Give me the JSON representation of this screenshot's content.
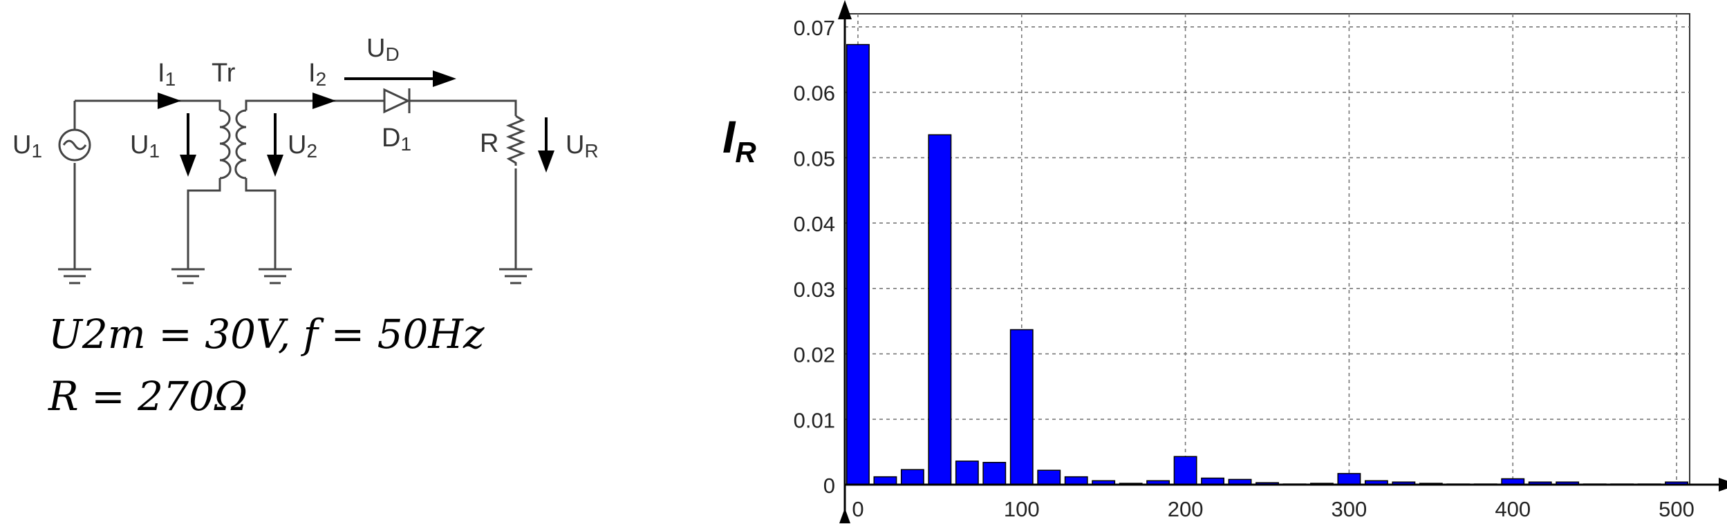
{
  "circuit": {
    "labels": {
      "source": "U1",
      "primary_current": "I1",
      "transformer": "Tr",
      "secondary_current": "I2",
      "diode_voltage": "UD",
      "primary_voltage": "U1",
      "secondary_voltage": "U2",
      "diode": "D1",
      "resistor": "R",
      "resistor_voltage": "UR"
    },
    "icons": [
      "ac-source-icon",
      "transformer-icon",
      "diode-icon",
      "resistor-icon",
      "ground-icon",
      "arrow-icon"
    ]
  },
  "equations": {
    "line1": "U2m = 30V, f = 50Hz",
    "line2": "R = 270Ω"
  },
  "chart_data": {
    "type": "bar",
    "ylabel": "IR",
    "xlabel": "",
    "title": "",
    "x": [
      0,
      16.67,
      33.33,
      50,
      66.67,
      83.33,
      100,
      116.67,
      133.33,
      150,
      166.67,
      183.33,
      200,
      216.67,
      233.33,
      250,
      266.67,
      283.33,
      300,
      316.67,
      333.33,
      350,
      366.67,
      383.33,
      400,
      416.67,
      433.33,
      450,
      466.67,
      483.33,
      500
    ],
    "values": [
      0.0673,
      0.0012,
      0.0023,
      0.0535,
      0.0036,
      0.0034,
      0.0237,
      0.0022,
      0.0012,
      0.0006,
      0.0002,
      0.0006,
      0.0043,
      0.001,
      0.0008,
      0.0003,
      0.0001,
      0.0002,
      0.0017,
      0.0006,
      0.0004,
      0.0002,
      0.0001,
      0.0001,
      0.0009,
      0.0004,
      0.0004,
      0.0001,
      0.0001,
      0.0001,
      0.0004
    ],
    "xlim": [
      -8,
      508
    ],
    "ylim": [
      0,
      0.072
    ],
    "xticks": [
      0,
      100,
      200,
      300,
      400,
      500
    ],
    "yticks": [
      0,
      0.01,
      0.02,
      0.03,
      0.04,
      0.05,
      0.06,
      0.07
    ],
    "xtick_labels": [
      "0",
      "100",
      "200",
      "300",
      "400",
      "500"
    ],
    "ytick_labels": [
      "0",
      "0.01",
      "0.02",
      "0.03",
      "0.04",
      "0.05",
      "0.06",
      "0.07"
    ],
    "grid": true,
    "bar_color": "#0000ff",
    "edge_color": "#000000"
  }
}
